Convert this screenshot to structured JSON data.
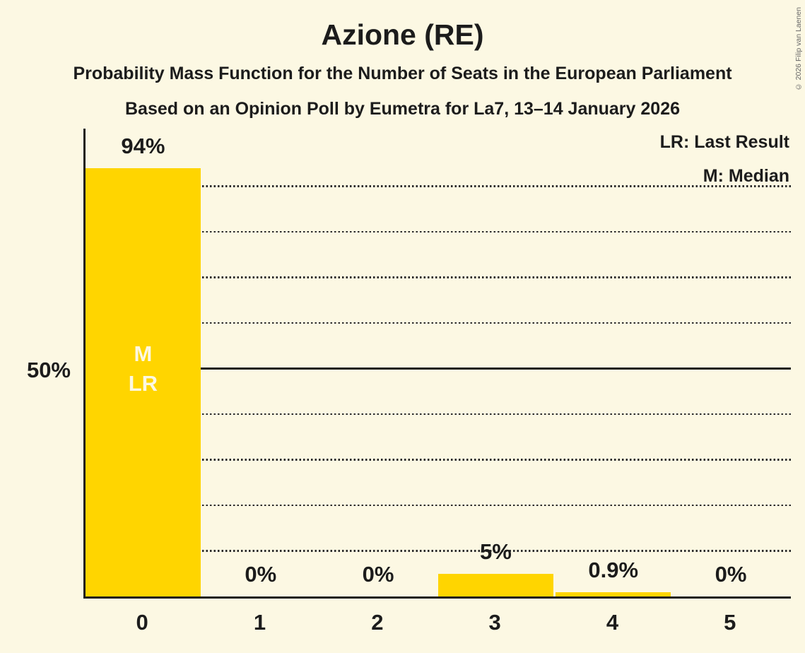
{
  "title": "Azione (RE)",
  "subtitle1": "Probability Mass Function for the Number of Seats in the European Parliament",
  "subtitle2": "Based on an Opinion Poll by Eumetra for La7, 13–14 January 2026",
  "copyright": "© 2026 Filip van Laenen",
  "legend": {
    "lr": "LR: Last Result",
    "m": "M: Median"
  },
  "y_axis": {
    "label_50": "50%"
  },
  "bar_annotations": {
    "median": "M",
    "last_result": "LR"
  },
  "colors": {
    "background": "#FCF8E3",
    "bar": "#FFD500",
    "text": "#1C1C1C",
    "gridline": "#2B2B2B",
    "annotation_text": "#FCF8E3",
    "copyright_text": "#666666"
  },
  "chart_data": {
    "type": "bar",
    "title": "Azione (RE)",
    "categories": [
      "0",
      "1",
      "2",
      "3",
      "4",
      "5"
    ],
    "values": [
      94,
      0,
      0,
      5,
      0.9,
      0
    ],
    "value_labels": [
      "94%",
      "0%",
      "0%",
      "5%",
      "0.9%",
      "0%"
    ],
    "median_bar_index": 0,
    "last_result_bar_index": 0,
    "ylim": [
      0,
      102
    ],
    "y_solid_line_pct": 50,
    "y_dotted_lines_pct": [
      10,
      20,
      30,
      40,
      60,
      70,
      80,
      90
    ],
    "grid": "horizontal dotted, solid at 50%",
    "legend_position": "top-right"
  }
}
